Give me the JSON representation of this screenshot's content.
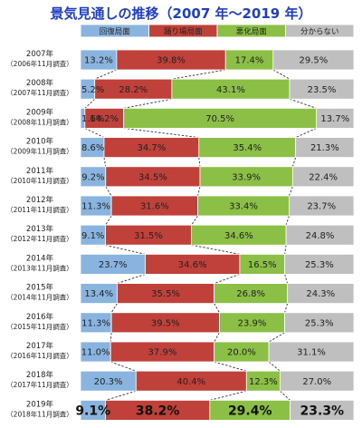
{
  "chart_data": {
    "type": "bar",
    "stacked": "100%",
    "orientation": "horizontal",
    "title": "景気見通しの推移（2007 年～2019 年）",
    "categories": [
      {
        "year": "2007年",
        "survey": "（2006年11月調査）"
      },
      {
        "year": "2008年",
        "survey": "（2007年11月調査）"
      },
      {
        "year": "2009年",
        "survey": "（2008年11月調査）"
      },
      {
        "year": "2010年",
        "survey": "（2009年11月調査）"
      },
      {
        "year": "2011年",
        "survey": "（2010年11月調査）"
      },
      {
        "year": "2012年",
        "survey": "（2011年11月調査）"
      },
      {
        "year": "2013年",
        "survey": "（2012年11月調査）"
      },
      {
        "year": "2014年",
        "survey": "（2013年11月調査）"
      },
      {
        "year": "2015年",
        "survey": "（2014年11月調査）"
      },
      {
        "year": "2016年",
        "survey": "（2015年11月調査）"
      },
      {
        "year": "2017年",
        "survey": "（2016年11月調査）"
      },
      {
        "year": "2018年",
        "survey": "（2017年11月調査）"
      },
      {
        "year": "2019年",
        "survey": "（2018年11月調査）"
      }
    ],
    "series": [
      {
        "name": "回復局面",
        "color": "#8ab4e0",
        "values": [
          13.2,
          5.2,
          1.6,
          8.6,
          9.2,
          11.3,
          9.1,
          23.7,
          13.4,
          11.3,
          11.0,
          20.3,
          9.1
        ],
        "labels": [
          "13.2%",
          "5.2%",
          "1.6%",
          "8.6%",
          "9.2%",
          "11.3%",
          "9.1%",
          "23.7%",
          "13.4%",
          "11.3%",
          "11.0%",
          "20.3%",
          "9.1%"
        ]
      },
      {
        "name": "踊り場局面",
        "color": "#c0403a",
        "values": [
          39.8,
          28.2,
          14.2,
          34.7,
          34.5,
          31.6,
          31.5,
          34.6,
          35.5,
          39.5,
          37.9,
          40.4,
          38.2
        ],
        "labels": [
          "39.8%",
          "28.2%",
          "14.2%",
          "34.7%",
          "34.5%",
          "31.6%",
          "31.5%",
          "34.6%",
          "35.5%",
          "39.5%",
          "37.9%",
          "40.4%",
          "38.2%"
        ]
      },
      {
        "name": "悪化局面",
        "color": "#8cbf45",
        "values": [
          17.4,
          43.1,
          70.5,
          35.4,
          33.9,
          33.4,
          34.6,
          16.5,
          26.8,
          23.9,
          20.0,
          12.3,
          29.4
        ],
        "labels": [
          "17.4%",
          "43.1%",
          "70.5%",
          "35.4%",
          "33.9%",
          "33.4%",
          "34.6%",
          "16.5%",
          "26.8%",
          "23.9%",
          "20.0%",
          "12.3%",
          "29.4%"
        ]
      },
      {
        "name": "分からない",
        "color": "#bfbfbf",
        "values": [
          29.5,
          23.5,
          13.7,
          21.3,
          22.4,
          23.7,
          24.8,
          25.3,
          24.3,
          25.3,
          31.1,
          27.0,
          23.3
        ],
        "labels": [
          "29.5%",
          "23.5%",
          "13.7%",
          "21.3%",
          "22.4%",
          "23.7%",
          "24.8%",
          "25.3%",
          "24.3%",
          "25.3%",
          "31.1%",
          "27.0%",
          "23.3%"
        ]
      }
    ],
    "highlight_last_row": true,
    "legend": "top",
    "grid": false
  }
}
